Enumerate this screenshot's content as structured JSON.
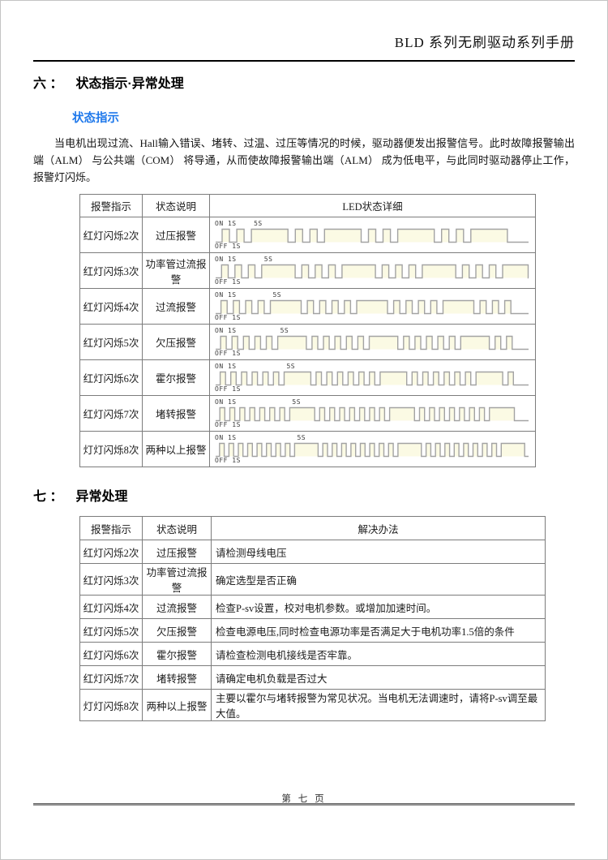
{
  "header": {
    "title": "BLD 系列无刷驱动系列手册"
  },
  "section_six": {
    "number": "六 ：",
    "title": "状态指示·异常处理"
  },
  "status_section": {
    "heading": "状态指示",
    "paragraph": "当电机出现过流、Hall输入错误、堵转、过温、过压等情况的时候，驱动器便发出报警信号。此时故障报警输出端（ALM） 与公共端（COM） 将导通，从而使故障报警输出端（ALM） 成为低电平，与此同时驱动器停止工作，报警灯闪烁。"
  },
  "led_table": {
    "headers": [
      "报警指示",
      "状态说明",
      "LED状态详细"
    ],
    "waveform_labels": {
      "on": "ON 1S",
      "pause": "5S",
      "off": "OFF 1S"
    },
    "rows": [
      {
        "indicator": "红灯闪烁2次",
        "status": "过压报警",
        "flashes": 2
      },
      {
        "indicator": "红灯闪烁3次",
        "status": "功率管过流报警",
        "flashes": 3
      },
      {
        "indicator": "红灯闪烁4次",
        "status": "过流报警",
        "flashes": 4
      },
      {
        "indicator": "红灯闪烁5次",
        "status": "欠压报警",
        "flashes": 5
      },
      {
        "indicator": "红灯闪烁6次",
        "status": "霍尔报警",
        "flashes": 6
      },
      {
        "indicator": "红灯闪烁7次",
        "status": "堵转报警",
        "flashes": 7
      },
      {
        "indicator": "灯灯闪烁8次",
        "status": "两种以上报警",
        "flashes": 8
      }
    ]
  },
  "section_seven": {
    "number": "七 ：",
    "title": "异常处理"
  },
  "solution_table": {
    "headers": [
      "报警指示",
      "状态说明",
      "解决办法"
    ],
    "rows": [
      {
        "indicator": "红灯闪烁2次",
        "status": "过压报警",
        "solution": "请检测母线电压"
      },
      {
        "indicator": "红灯闪烁3次",
        "status": "功率管过流报警",
        "solution": "确定选型是否正确"
      },
      {
        "indicator": "红灯闪烁4次",
        "status": "过流报警",
        "solution": "检查P-sv设置，校对电机参数。或增加加速时间。"
      },
      {
        "indicator": "红灯闪烁5次",
        "status": "欠压报警",
        "solution": "检查电源电压,同时检查电源功率是否满足大于电机功率1.5倍的条件"
      },
      {
        "indicator": "红灯闪烁6次",
        "status": "霍尔报警",
        "solution": "请检查检测电机接线是否牢靠。"
      },
      {
        "indicator": "红灯闪烁7次",
        "status": "堵转报警",
        "solution": "请确定电机负载是否过大"
      },
      {
        "indicator": "灯灯闪烁8次",
        "status": "两种以上报警",
        "solution": "主要以霍尔与堵转报警为常见状况。当电机无法调速时，请将P-sv调至最大值。"
      }
    ]
  },
  "footer": {
    "page_label": "第 七 页"
  },
  "colors": {
    "accent_blue": "#1e78eb",
    "waveform_fill": "#fbfae4",
    "waveform_stroke": "#a3a3a3"
  }
}
